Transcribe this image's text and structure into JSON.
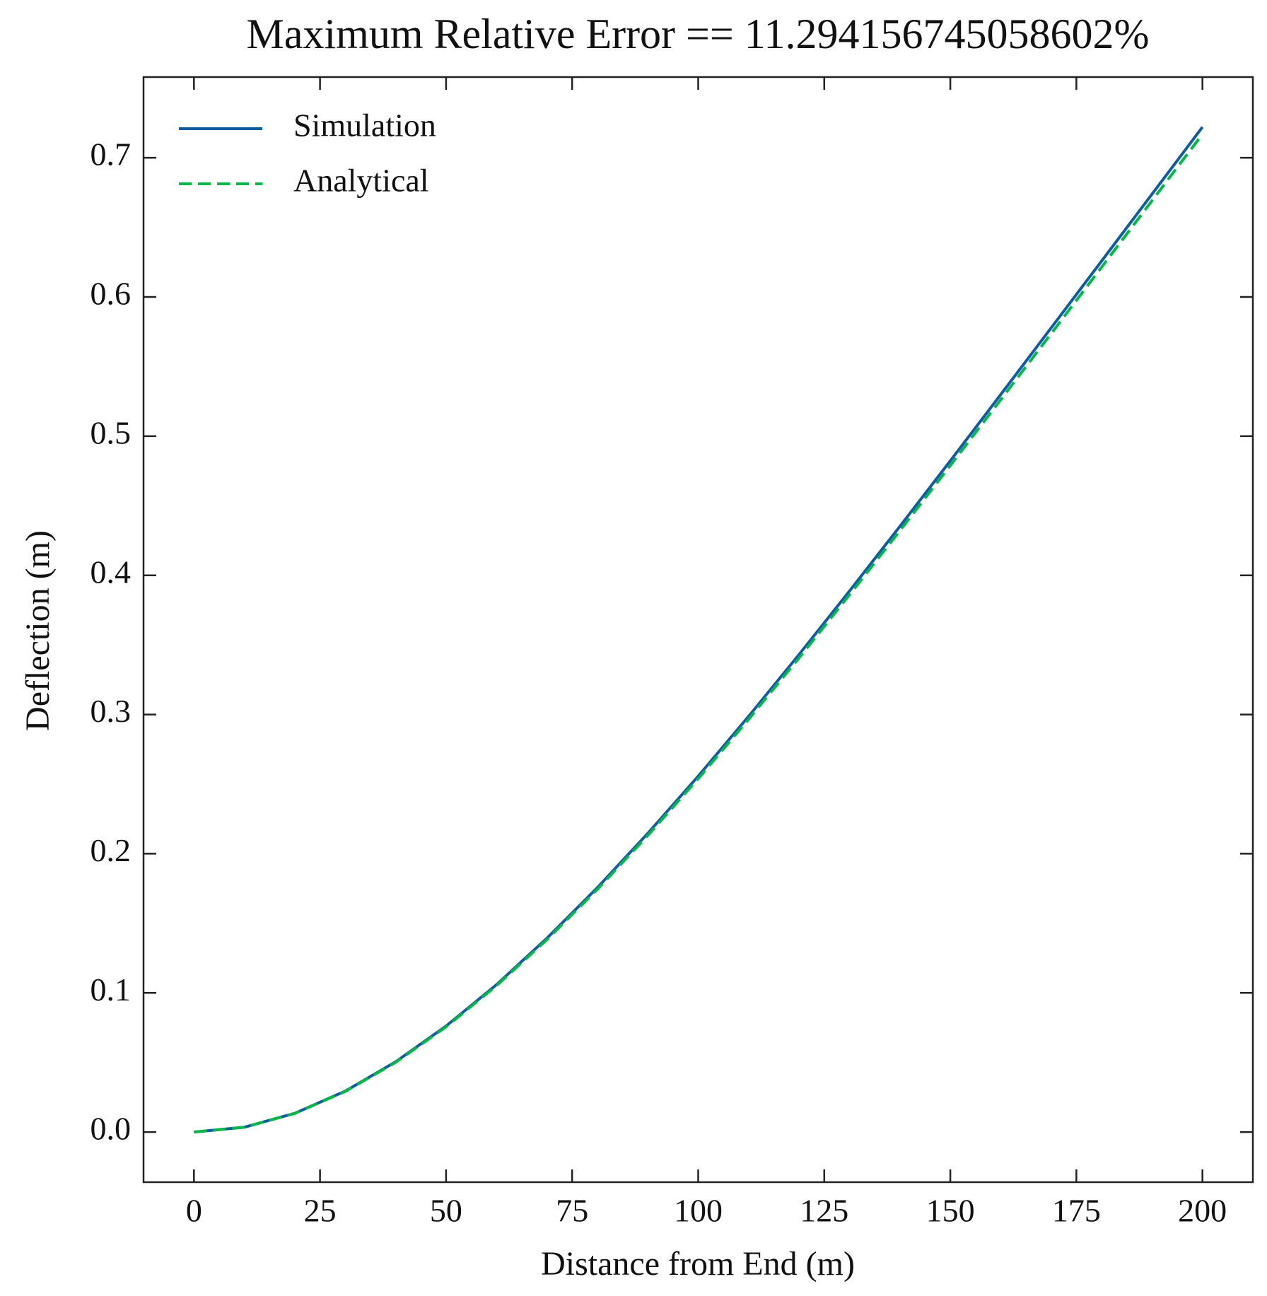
{
  "chart_data": {
    "type": "line",
    "title": "Maximum Relative Error == 11.294156745058602%",
    "x_label": "Distance from End (m)",
    "y_label": "Deflection (m)",
    "x": [
      0,
      10,
      20,
      30,
      40,
      50,
      60,
      70,
      80,
      90,
      100,
      110,
      120,
      130,
      140,
      150,
      160,
      170,
      180,
      190,
      200
    ],
    "series": [
      {
        "name": "Simulation",
        "color": "#0C5DA5",
        "dash": "solid",
        "values": [
          0,
          0.0035,
          0.0135,
          0.0294,
          0.0505,
          0.0762,
          0.1059,
          0.1393,
          0.1756,
          0.2146,
          0.2557,
          0.2987,
          0.3431,
          0.3887,
          0.4352,
          0.4823,
          0.5299,
          0.5778,
          0.6258,
          0.6739,
          0.7221
        ]
      },
      {
        "name": "Analytical",
        "color": "#00B945",
        "dash": "dashed",
        "values": [
          0,
          0.0035,
          0.0134,
          0.0292,
          0.0501,
          0.0756,
          0.1052,
          0.1383,
          0.1744,
          0.2131,
          0.2539,
          0.2966,
          0.3407,
          0.386,
          0.4321,
          0.4789,
          0.5262,
          0.5737,
          0.6214,
          0.6692,
          0.717
        ]
      }
    ],
    "xlim": [
      -10,
      210
    ],
    "ylim": [
      -0.036,
      0.758
    ],
    "xticks": [
      0,
      25,
      50,
      75,
      100,
      125,
      150,
      175,
      200
    ],
    "yticks": [
      {
        "value": 0,
        "label": "0.0"
      },
      {
        "value": 0.1,
        "label": "0.1"
      },
      {
        "value": 0.2,
        "label": "0.2"
      },
      {
        "value": 0.3,
        "label": "0.3"
      },
      {
        "value": 0.4,
        "label": "0.4"
      },
      {
        "value": 0.5,
        "label": "0.5"
      },
      {
        "value": 0.6,
        "label": "0.6"
      },
      {
        "value": 0.7,
        "label": "0.7"
      }
    ],
    "legend": "upper left",
    "grid": false
  }
}
